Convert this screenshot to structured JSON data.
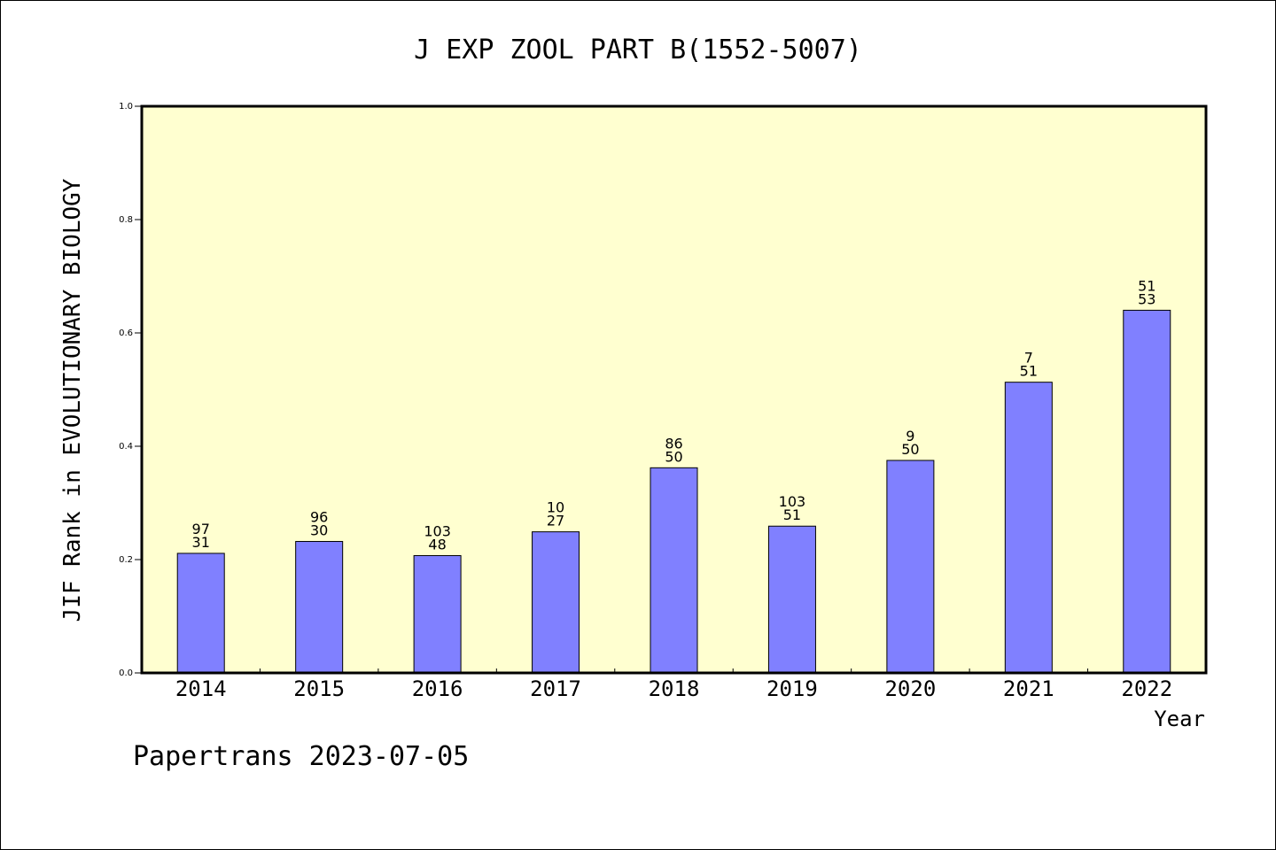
{
  "chart_data": {
    "type": "bar",
    "title": "J EXP ZOOL PART B(1552-5007)",
    "xlabel": "Year",
    "ylabel": "JIF Rank in EVOLUTIONARY BIOLOGY",
    "categories": [
      "2014",
      "2015",
      "2016",
      "2017",
      "2018",
      "2019",
      "2020",
      "2021",
      "2022"
    ],
    "values": [
      0.211,
      0.232,
      0.207,
      0.249,
      0.362,
      0.259,
      0.375,
      0.513,
      0.64
    ],
    "labels_top": [
      "97",
      "96",
      "103",
      "10",
      "86",
      "103",
      "9",
      "7",
      "51"
    ],
    "labels_bottom": [
      "31",
      "30",
      "48",
      "27",
      "50",
      "51",
      "50",
      "51",
      "53"
    ],
    "ylim": [
      0,
      1.0
    ],
    "yticks": [
      "0.0",
      "0.2",
      "0.4",
      "0.6",
      "0.8",
      "1.0"
    ],
    "grid": false,
    "plot_background": "#ffffd0",
    "bar_color": "#8080ff"
  },
  "footer": "Papertrans 2023-07-05"
}
